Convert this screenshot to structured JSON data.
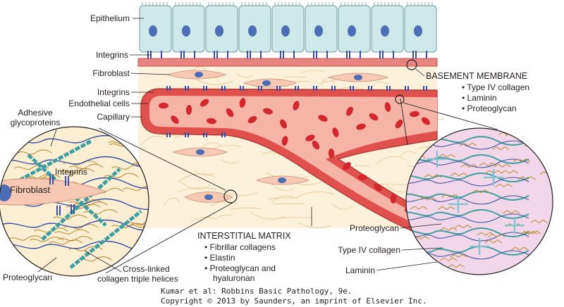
{
  "colors": {
    "epithelium": "#cfe9ea",
    "nucleus": "#4d6db5",
    "basement": "#e8837f",
    "interstitium": "#fdf1dc",
    "fiber": "#e9c48e",
    "vessel_wall": "#e0514d",
    "vessel_lumen": "#f6b4a6",
    "rbc": "#d2272b",
    "fibroblast": "#f7c8b4",
    "collagen": "#3f9fa0",
    "integrin": "#3a4fa0",
    "proteoglycan": "#b8872e"
  },
  "labels": {
    "epithelium": "Epithelium",
    "integrins_top": "Integrins",
    "fibroblast": "Fibroblast",
    "integrins_mid": "Integrins",
    "endothelial_cells": "Endothelial cells",
    "capillary": "Capillary",
    "adhesive_glyco_1": "Adhesive",
    "adhesive_glyco_2": "glycoproteins",
    "integrins_inset": "Integrins",
    "fibroblast_inset": "Fibroblast",
    "proteoglycan_left": "Proteoglycan",
    "crosslinked_1": "Cross-linked",
    "crosslinked_2": "collagen triple helices",
    "proteoglycan_right": "Proteoglycan",
    "type4_right": "Type IV collagen",
    "laminin_right": "Laminin"
  },
  "basement_membrane": {
    "title": "BASEMENT MEMBRANE",
    "items": [
      "• Type IV collagen",
      "• Laminin",
      "• Proteoglycan"
    ]
  },
  "interstitial_matrix": {
    "title": "INTERSTITIAL MATRIX",
    "items": [
      "• Fibrillar collagens",
      "• Elastin",
      "• Proteoglycan and",
      "hyaluronan"
    ]
  },
  "credit": {
    "line1": "Kumar et al: Robbins Basic Pathology, 9e.",
    "line2": "Copyright © 2013  by Saunders, an imprint of Elsevier Inc."
  }
}
